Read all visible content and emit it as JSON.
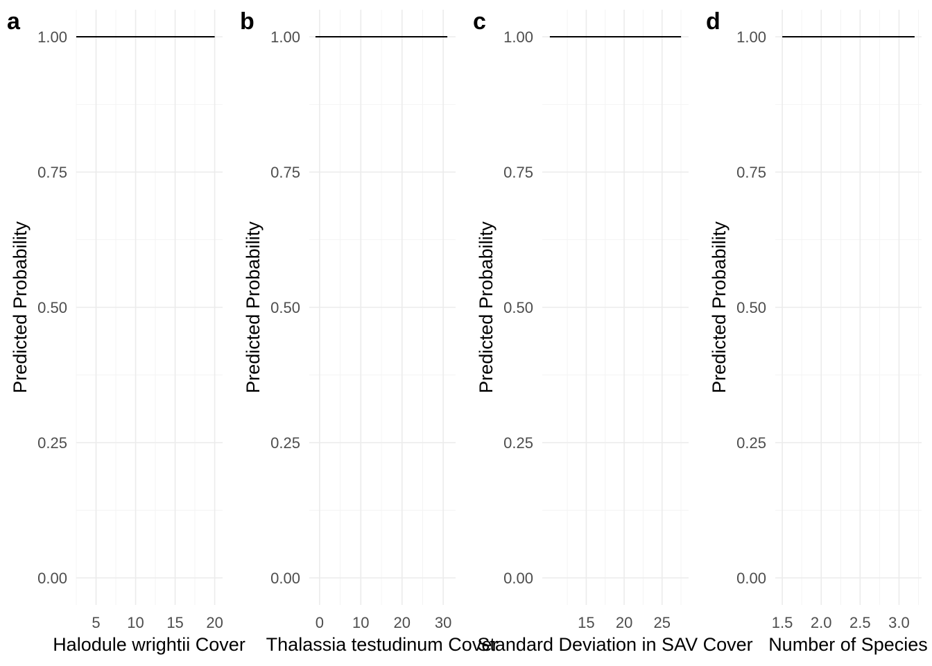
{
  "chart_data": [
    {
      "type": "line",
      "panel_tag": "a",
      "xlabel": "Halodule wrightii Cover",
      "ylabel": "Predicted Probability",
      "x_ticks": [
        5,
        10,
        15,
        20
      ],
      "x_tick_labels": [
        "5",
        "10",
        "15",
        "20"
      ],
      "xlim": [
        2.5,
        21
      ],
      "ylim": [
        -0.05,
        1.05
      ],
      "y_ticks": [
        0,
        0.25,
        0.5,
        0.75,
        1
      ],
      "y_tick_labels": [
        "0.00",
        "0.25",
        "0.50",
        "0.75",
        "1.00"
      ],
      "grid": true,
      "x": [
        2.5,
        20
      ],
      "y": [
        1,
        1
      ]
    },
    {
      "type": "line",
      "panel_tag": "b",
      "xlabel": "Thalassia testudinum Cover",
      "ylabel": "Predicted Probability",
      "x_ticks": [
        0,
        10,
        20,
        30
      ],
      "x_tick_labels": [
        "0",
        "10",
        "20",
        "30"
      ],
      "xlim": [
        -2.5,
        33
      ],
      "ylim": [
        -0.05,
        1.05
      ],
      "y_ticks": [
        0,
        0.25,
        0.5,
        0.75,
        1
      ],
      "y_tick_labels": [
        "0.00",
        "0.25",
        "0.50",
        "0.75",
        "1.00"
      ],
      "grid": true,
      "x": [
        -1,
        31
      ],
      "y": [
        1,
        1
      ]
    },
    {
      "type": "line",
      "panel_tag": "c",
      "xlabel": "Standard Deviation in SAV Cover",
      "ylabel": "Predicted Probability",
      "x_ticks": [
        15,
        20,
        25
      ],
      "x_tick_labels": [
        "15",
        "20",
        "25"
      ],
      "xlim": [
        9.2,
        28.5
      ],
      "ylim": [
        -0.05,
        1.05
      ],
      "y_ticks": [
        0,
        0.25,
        0.5,
        0.75,
        1
      ],
      "y_tick_labels": [
        "0.00",
        "0.25",
        "0.50",
        "0.75",
        "1.00"
      ],
      "grid": true,
      "x": [
        10.2,
        27.5
      ],
      "y": [
        1,
        1
      ]
    },
    {
      "type": "line",
      "panel_tag": "d",
      "xlabel": "Number of Species",
      "ylabel": "Predicted Probability",
      "x_ticks": [
        1.5,
        2,
        2.5,
        3
      ],
      "x_tick_labels": [
        "1.5",
        "2.0",
        "2.5",
        "3.0"
      ],
      "xlim": [
        1.41,
        3.29
      ],
      "ylim": [
        -0.05,
        1.05
      ],
      "y_ticks": [
        0,
        0.25,
        0.5,
        0.75,
        1
      ],
      "y_tick_labels": [
        "0.00",
        "0.25",
        "0.50",
        "0.75",
        "1.00"
      ],
      "grid": true,
      "x": [
        1.5,
        3.2
      ],
      "y": [
        1,
        1
      ]
    }
  ]
}
